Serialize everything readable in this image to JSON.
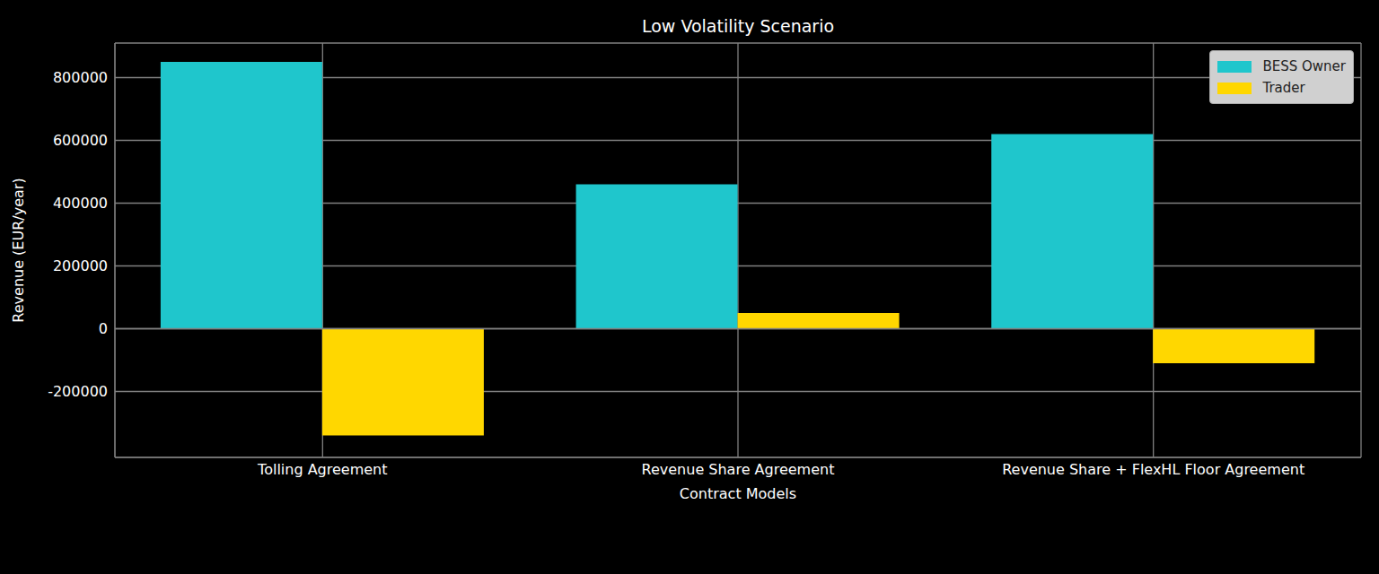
{
  "chart_data": {
    "type": "bar",
    "title": "Low Volatility Scenario",
    "x_label": "Contract Models",
    "y_label": "Revenue (EUR/year)",
    "categories": [
      "Tolling Agreement",
      "Revenue Share Agreement",
      "Revenue Share + FlexHL Floor Agreement"
    ],
    "series": [
      {
        "name": "BESS Owner",
        "color": "#1fc6cc",
        "values": [
          850000,
          460000,
          620000
        ]
      },
      {
        "name": "Trader",
        "color": "#ffd700",
        "values": [
          -340000,
          50000,
          -110000
        ]
      }
    ],
    "ylim": [
      -410000,
      910000
    ],
    "yticks": [
      -200000,
      0,
      200000,
      400000,
      600000,
      800000
    ],
    "grid": true,
    "legend": "upper right"
  }
}
